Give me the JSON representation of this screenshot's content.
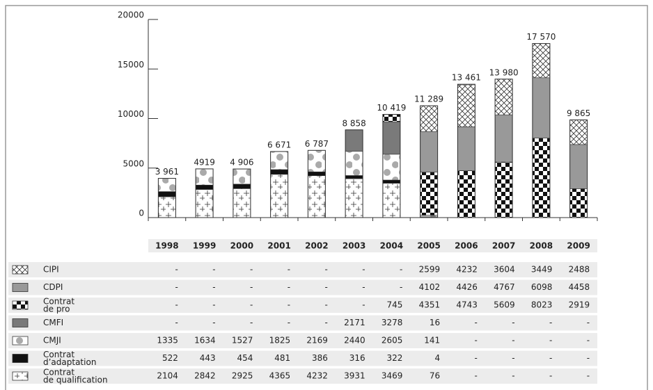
{
  "chart_data": {
    "type": "bar",
    "stacked": true,
    "categories": [
      "1998",
      "1999",
      "2000",
      "2001",
      "2002",
      "2003",
      "2004",
      "2005",
      "2006",
      "2007",
      "2008",
      "2009"
    ],
    "ylim": [
      0,
      20000
    ],
    "yticks": [
      0,
      5000,
      10000,
      15000,
      20000
    ],
    "totals": [
      3961,
      4919,
      4906,
      6671,
      6787,
      8858,
      10419,
      11289,
      13461,
      13980,
      17570,
      9865
    ],
    "total_labels": [
      "3 961",
      "4919",
      "4 906",
      "6 671",
      "6 787",
      "8 858",
      "10 419",
      "11 289",
      "13 461",
      "13 980",
      "17 570",
      "9 865"
    ],
    "series": [
      {
        "name": "Contrat\nde qualification",
        "color": "#333333",
        "values": [
          2104,
          2842,
          2925,
          4365,
          4232,
          3931,
          3469,
          76,
          null,
          null,
          null,
          null
        ],
        "value_labels": [
          "2104",
          "2842",
          "2925",
          "4365",
          "4232",
          "3931",
          "3469",
          "76",
          "-",
          "-",
          "-",
          "-"
        ]
      },
      {
        "name": "Contrat\nd’adaptation",
        "color": "#111111",
        "values": [
          522,
          443,
          454,
          481,
          386,
          316,
          322,
          4,
          null,
          null,
          null,
          null
        ],
        "value_labels": [
          "522",
          "443",
          "454",
          "481",
          "386",
          "316",
          "322",
          "4",
          "-",
          "-",
          "-",
          "-"
        ]
      },
      {
        "name": "CMJI",
        "color": "#aaaaaa",
        "values": [
          1335,
          1634,
          1527,
          1825,
          2169,
          2440,
          2605,
          141,
          null,
          null,
          null,
          null
        ],
        "value_labels": [
          "1335",
          "1634",
          "1527",
          "1825",
          "2169",
          "2440",
          "2605",
          "141",
          "-",
          "-",
          "-",
          "-"
        ]
      },
      {
        "name": "CMFI",
        "color": "#7a7a7a",
        "values": [
          null,
          null,
          null,
          null,
          null,
          2171,
          3278,
          16,
          null,
          null,
          null,
          null
        ],
        "value_labels": [
          "-",
          "-",
          "-",
          "-",
          "-",
          "2171",
          "3278",
          "16",
          "-",
          "-",
          "-",
          "-"
        ]
      },
      {
        "name": "Contrat\nde pro",
        "color": "#111111",
        "values": [
          null,
          null,
          null,
          null,
          null,
          null,
          745,
          4351,
          4743,
          5609,
          8023,
          2919
        ],
        "value_labels": [
          "-",
          "-",
          "-",
          "-",
          "-",
          "-",
          "745",
          "4351",
          "4743",
          "5609",
          "8023",
          "2919"
        ]
      },
      {
        "name": "CDPI",
        "color": "#999999",
        "values": [
          null,
          null,
          null,
          null,
          null,
          null,
          null,
          4102,
          4426,
          4767,
          6098,
          4458
        ],
        "value_labels": [
          "-",
          "-",
          "-",
          "-",
          "-",
          "-",
          "-",
          "4102",
          "4426",
          "4767",
          "6098",
          "4458"
        ]
      },
      {
        "name": "CIPI",
        "color": "#333333",
        "values": [
          null,
          null,
          null,
          null,
          null,
          null,
          null,
          2599,
          4232,
          3604,
          3449,
          2488
        ],
        "value_labels": [
          "-",
          "-",
          "-",
          "-",
          "-",
          "-",
          "-",
          "2599",
          "4232",
          "3604",
          "3449",
          "2488"
        ]
      }
    ]
  }
}
